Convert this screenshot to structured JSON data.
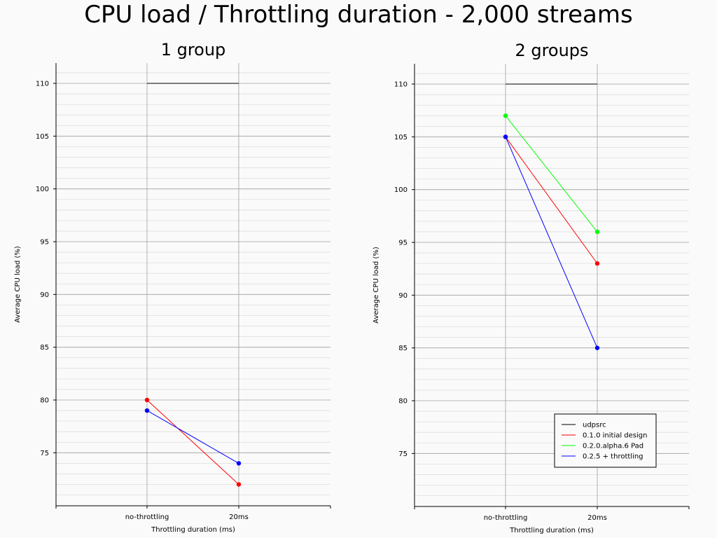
{
  "title": "CPU load / Throttling duration - 2,000 streams",
  "colors": {
    "grid_major": "#a0a0a0",
    "grid_minor": "#dddddd",
    "axis": "#000000"
  },
  "chart_data": [
    {
      "type": "line",
      "title": "1 group",
      "xlabel": "Throttling duration (ms)",
      "ylabel": "Average CPU load (%)",
      "categories": [
        "no-throttling",
        "20ms"
      ],
      "y_ticks": [
        75,
        80,
        85,
        90,
        95,
        100,
        105,
        110
      ],
      "ylim": [
        70,
        112
      ],
      "grid": true,
      "series": [
        {
          "name": "udpsrc",
          "color": "#000000",
          "values": [
            110,
            110
          ],
          "markers": false
        },
        {
          "name": "0.1.0 initial design",
          "color": "#ff0000",
          "values": [
            80,
            72
          ],
          "markers": true
        },
        {
          "name": "0.2.5 + throttling",
          "color": "#0000ff",
          "values": [
            79,
            74
          ],
          "markers": true
        }
      ]
    },
    {
      "type": "line",
      "title": "2 groups",
      "xlabel": "Throttling duration (ms)",
      "ylabel": "Average CPU load (%)",
      "categories": [
        "no-throttling",
        "20ms"
      ],
      "y_ticks": [
        75,
        80,
        85,
        90,
        95,
        100,
        105,
        110
      ],
      "ylim": [
        70,
        112
      ],
      "grid": true,
      "legend": "bottom-right",
      "series": [
        {
          "name": "udpsrc",
          "color": "#000000",
          "values": [
            110,
            110
          ],
          "markers": false
        },
        {
          "name": "0.1.0 initial design",
          "color": "#ff0000",
          "values": [
            105,
            93
          ],
          "markers": true
        },
        {
          "name": "0.2.0.alpha.6 Pad",
          "color": "#00ff00",
          "values": [
            107,
            96
          ],
          "markers": true
        },
        {
          "name": "0.2.5 + throttling",
          "color": "#0000ff",
          "values": [
            105,
            85
          ],
          "markers": true
        }
      ]
    }
  ]
}
